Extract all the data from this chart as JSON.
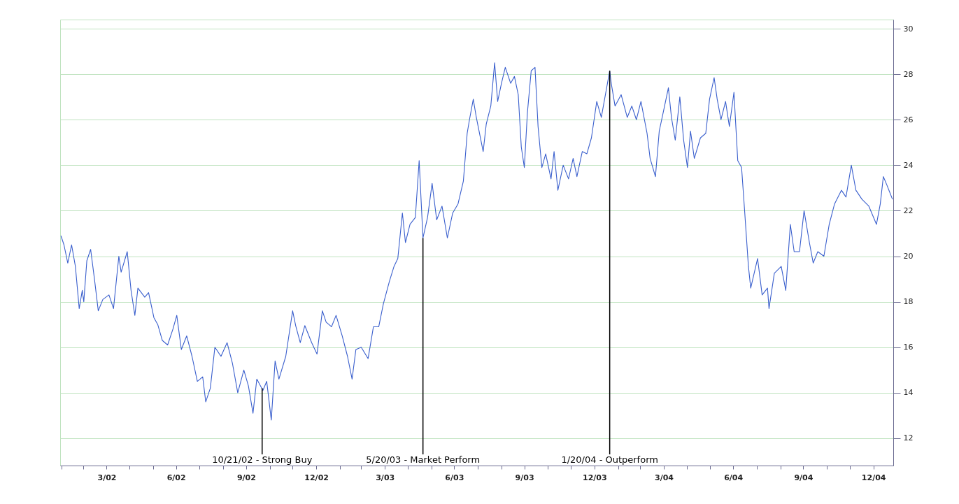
{
  "chart_data": {
    "type": "line",
    "x": [
      "2002-01-30",
      "2002-02-03",
      "2002-02-08",
      "2002-02-13",
      "2002-02-18",
      "2002-02-23",
      "2002-02-27",
      "2002-03-01",
      "2002-03-05",
      "2002-03-10",
      "2002-03-15",
      "2002-03-20",
      "2002-03-26",
      "2002-04-03",
      "2002-04-09",
      "2002-04-16",
      "2002-04-19",
      "2002-04-27",
      "2002-05-02",
      "2002-05-07",
      "2002-05-11",
      "2002-05-20",
      "2002-05-25",
      "2002-06-01",
      "2002-06-06",
      "2002-06-12",
      "2002-06-19",
      "2002-06-26",
      "2002-07-01",
      "2002-07-07",
      "2002-07-14",
      "2002-07-21",
      "2002-07-28",
      "2002-08-04",
      "2002-08-08",
      "2002-08-14",
      "2002-08-20",
      "2002-08-28",
      "2002-09-05",
      "2002-09-12",
      "2002-09-19",
      "2002-09-27",
      "2002-10-03",
      "2002-10-09",
      "2002-10-14",
      "2002-10-22",
      "2002-10-27",
      "2002-11-02",
      "2002-11-07",
      "2002-11-12",
      "2002-11-21",
      "2002-11-30",
      "2002-12-04",
      "2002-12-10",
      "2002-12-16",
      "2002-12-25",
      "2003-01-01",
      "2003-01-08",
      "2003-01-13",
      "2003-01-20",
      "2003-01-26",
      "2003-02-03",
      "2003-02-10",
      "2003-02-16",
      "2003-02-21",
      "2003-02-28",
      "2003-03-09",
      "2003-03-16",
      "2003-03-23",
      "2003-03-29",
      "2003-04-06",
      "2003-04-12",
      "2003-04-17",
      "2003-04-23",
      "2003-04-27",
      "2003-05-03",
      "2003-05-10",
      "2003-05-15",
      "2003-05-20",
      "2003-05-26",
      "2003-06-01",
      "2003-06-07",
      "2003-06-14",
      "2003-06-21",
      "2003-06-28",
      "2003-07-05",
      "2003-07-12",
      "2003-07-17",
      "2003-07-20",
      "2003-07-25",
      "2003-07-29",
      "2003-08-07",
      "2003-08-11",
      "2003-08-17",
      "2003-08-22",
      "2003-08-26",
      "2003-08-31",
      "2003-09-05",
      "2003-09-12",
      "2003-09-17",
      "2003-09-22",
      "2003-09-26",
      "2003-09-30",
      "2003-10-04",
      "2003-10-09",
      "2003-10-14",
      "2003-10-18",
      "2003-10-23",
      "2003-10-28",
      "2003-11-04",
      "2003-11-08",
      "2003-11-13",
      "2003-11-20",
      "2003-11-27",
      "2003-12-03",
      "2003-12-08",
      "2003-12-15",
      "2003-12-21",
      "2003-12-27",
      "2004-01-03",
      "2004-01-09",
      "2004-01-20",
      "2004-01-22",
      "2004-01-27",
      "2004-02-04",
      "2004-02-12",
      "2004-02-18",
      "2004-02-24",
      "2004-03-01",
      "2004-03-09",
      "2004-03-13",
      "2004-03-20",
      "2004-03-25",
      "2004-04-01",
      "2004-04-06",
      "2004-04-10",
      "2004-04-15",
      "2004-04-21",
      "2004-04-26",
      "2004-05-01",
      "2004-05-05",
      "2004-05-10",
      "2004-05-18",
      "2004-05-25",
      "2004-05-30",
      "2004-06-05",
      "2004-06-09",
      "2004-06-14",
      "2004-06-20",
      "2004-06-25",
      "2004-07-01",
      "2004-07-06",
      "2004-07-11",
      "2004-07-15",
      "2004-07-20",
      "2004-07-23",
      "2004-08-01",
      "2004-08-07",
      "2004-08-14",
      "2004-08-16",
      "2004-08-23",
      "2004-09-01",
      "2004-09-07",
      "2004-09-13",
      "2004-09-18",
      "2004-09-25",
      "2004-10-01",
      "2004-10-08",
      "2004-10-13",
      "2004-10-19",
      "2004-10-27",
      "2004-11-03",
      "2004-11-10",
      "2004-11-19",
      "2004-11-25",
      "2004-12-02",
      "2004-12-08",
      "2004-12-16",
      "2004-12-25",
      "2005-01-04",
      "2005-01-09",
      "2005-01-13",
      "2005-01-18",
      "2005-01-25"
    ],
    "series": [
      {
        "color": "#3a5fcd",
        "values": [
          20.9,
          20.5,
          19.7,
          20.5,
          19.55,
          17.7,
          18.5,
          18.0,
          19.8,
          20.3,
          19.0,
          17.6,
          18.1,
          18.3,
          17.7,
          20.0,
          19.3,
          20.2,
          18.5,
          17.4,
          18.6,
          18.2,
          18.4,
          17.3,
          17.0,
          16.3,
          16.1,
          16.8,
          17.4,
          15.9,
          16.5,
          15.6,
          14.5,
          14.7,
          13.6,
          14.2,
          16.0,
          15.6,
          16.2,
          15.3,
          14.0,
          15.0,
          14.3,
          13.1,
          14.6,
          14.1,
          14.5,
          12.8,
          15.4,
          14.6,
          15.6,
          17.6,
          16.95,
          16.2,
          16.95,
          16.2,
          15.7,
          17.6,
          17.1,
          16.9,
          17.4,
          16.5,
          15.6,
          14.6,
          15.9,
          16.0,
          15.5,
          16.9,
          16.9,
          17.9,
          18.9,
          19.55,
          19.9,
          21.9,
          20.6,
          21.4,
          21.7,
          24.2,
          20.8,
          21.7,
          23.2,
          21.6,
          22.2,
          20.8,
          21.9,
          22.3,
          23.3,
          25.4,
          26.0,
          26.9,
          26.1,
          24.6,
          25.8,
          26.6,
          28.5,
          26.8,
          27.6,
          28.3,
          27.6,
          27.9,
          27.1,
          24.8,
          23.9,
          26.3,
          28.15,
          28.3,
          25.7,
          23.9,
          24.5,
          23.4,
          24.6,
          22.9,
          24.0,
          23.4,
          24.3,
          23.5,
          24.6,
          24.5,
          25.2,
          26.8,
          26.1,
          28.15,
          27.6,
          26.6,
          27.1,
          26.1,
          26.6,
          26.0,
          26.8,
          25.4,
          24.3,
          23.5,
          25.5,
          26.6,
          27.4,
          26.1,
          25.1,
          27.0,
          25.1,
          23.9,
          25.5,
          24.3,
          25.2,
          25.4,
          26.9,
          27.85,
          26.9,
          26.0,
          26.8,
          25.7,
          27.2,
          24.2,
          23.9,
          22.0,
          19.55,
          18.6,
          19.9,
          18.3,
          18.6,
          17.7,
          19.25,
          19.55,
          18.5,
          21.4,
          20.2,
          20.2,
          22.0,
          20.6,
          19.7,
          20.2,
          20.0,
          21.4,
          22.3,
          22.9,
          22.6,
          24.0,
          22.9,
          22.5,
          22.2,
          21.4,
          22.3,
          23.5,
          23.1,
          22.5
        ]
      }
    ],
    "xlim": [
      "2002-01-29",
      "2005-01-26"
    ],
    "xticks": [
      {
        "value": "2002-01-31",
        "label": null
      },
      {
        "value": "2002-02-28",
        "label": null
      },
      {
        "value": "2002-03-31",
        "label": "3/02"
      },
      {
        "value": "2002-04-30",
        "label": null
      },
      {
        "value": "2002-05-31",
        "label": null
      },
      {
        "value": "2002-06-30",
        "label": "6/02"
      },
      {
        "value": "2002-07-31",
        "label": null
      },
      {
        "value": "2002-08-31",
        "label": null
      },
      {
        "value": "2002-09-30",
        "label": "9/02"
      },
      {
        "value": "2002-10-31",
        "label": null
      },
      {
        "value": "2002-11-30",
        "label": null
      },
      {
        "value": "2002-12-31",
        "label": "12/02"
      },
      {
        "value": "2003-01-31",
        "label": null
      },
      {
        "value": "2003-02-28",
        "label": null
      },
      {
        "value": "2003-03-31",
        "label": "3/03"
      },
      {
        "value": "2003-04-30",
        "label": null
      },
      {
        "value": "2003-05-31",
        "label": null
      },
      {
        "value": "2003-06-30",
        "label": "6/03"
      },
      {
        "value": "2003-07-31",
        "label": null
      },
      {
        "value": "2003-08-31",
        "label": null
      },
      {
        "value": "2003-09-30",
        "label": "9/03"
      },
      {
        "value": "2003-10-31",
        "label": null
      },
      {
        "value": "2003-11-30",
        "label": null
      },
      {
        "value": "2003-12-31",
        "label": "12/03"
      },
      {
        "value": "2004-01-31",
        "label": null
      },
      {
        "value": "2004-02-29",
        "label": null
      },
      {
        "value": "2004-03-31",
        "label": "3/04"
      },
      {
        "value": "2004-04-30",
        "label": null
      },
      {
        "value": "2004-05-31",
        "label": null
      },
      {
        "value": "2004-06-30",
        "label": "6/04"
      },
      {
        "value": "2004-07-31",
        "label": null
      },
      {
        "value": "2004-08-31",
        "label": null
      },
      {
        "value": "2004-09-30",
        "label": "9/04"
      },
      {
        "value": "2004-10-31",
        "label": null
      },
      {
        "value": "2004-11-30",
        "label": null
      },
      {
        "value": "2004-12-31",
        "label": "12/04"
      }
    ],
    "ylim": [
      10.8,
      30.4
    ],
    "yticks": [
      12,
      14,
      16,
      18,
      20,
      22,
      24,
      26,
      28,
      30
    ],
    "grid": "y",
    "annotations": [
      {
        "text": "10/21/02 - Strong Buy",
        "x": "2002-10-21",
        "y": 14.2
      },
      {
        "text": "5/20/03 - Market Perform",
        "x": "2003-05-20",
        "y": 20.8
      },
      {
        "text": "1/20/04 - Outperform",
        "x": "2004-01-20",
        "y": 28.15
      }
    ]
  }
}
